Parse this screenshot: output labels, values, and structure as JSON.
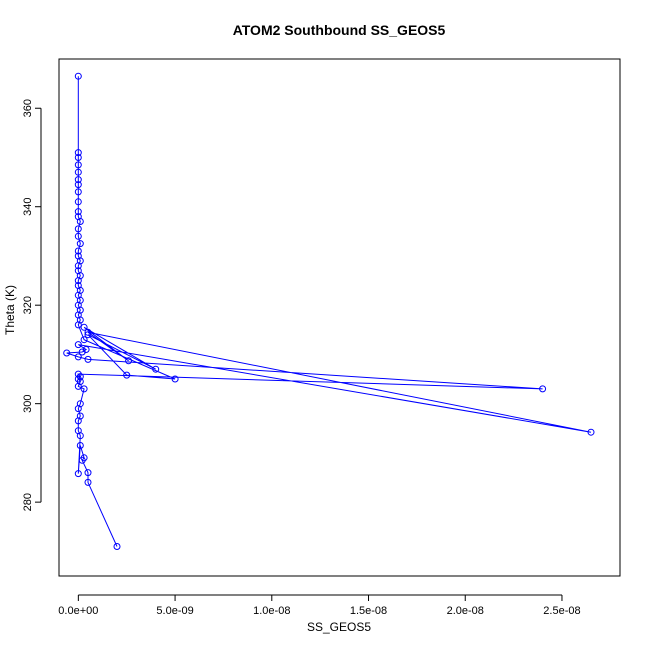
{
  "chart_data": {
    "type": "line",
    "title": "ATOM2 Southbound SS_GEOS5",
    "xlabel": "SS_GEOS5",
    "ylabel": "Theta (K)",
    "xlim": [
      -1e-09,
      2.8e-08
    ],
    "ylim": [
      265,
      370
    ],
    "x_ticks": [
      0,
      5e-09,
      1e-08,
      1.5e-08,
      2e-08,
      2.5e-08
    ],
    "x_tick_labels": [
      "0.0e+00",
      "5.0e-09",
      "1.0e-08",
      "1.5e-08",
      "2.0e-08",
      "2.5e-08"
    ],
    "y_ticks": [
      280,
      300,
      320,
      340,
      360
    ],
    "y_tick_labels": [
      "280",
      "300",
      "320",
      "340",
      "360"
    ],
    "grid": false,
    "markers": "open-circle",
    "series": [
      {
        "color": "#0000ff",
        "points": [
          [
            2e-09,
            271.0
          ],
          [
            5e-10,
            284.0
          ],
          [
            5e-10,
            286.0
          ],
          [
            2e-10,
            288.5
          ],
          [
            3e-10,
            289.0
          ],
          [
            1e-10,
            291.5
          ],
          [
            0.0,
            285.8
          ],
          [
            1e-10,
            293.5
          ],
          [
            0.0,
            294.5
          ],
          [
            0.0,
            296.5
          ],
          [
            1e-10,
            297.5
          ],
          [
            0.0,
            299.0
          ],
          [
            1e-10,
            300.0
          ],
          [
            3e-10,
            303.0
          ],
          [
            0.0,
            303.5
          ],
          [
            1e-10,
            304.5
          ],
          [
            0.0,
            305.0
          ],
          [
            1e-10,
            305.5
          ],
          [
            0.0,
            306.0
          ],
          [
            2.4e-08,
            303.0
          ],
          [
            5e-10,
            309.0
          ],
          [
            0.0,
            309.5
          ],
          [
            -6e-10,
            310.3
          ],
          [
            2e-10,
            310.5
          ],
          [
            4e-10,
            311.0
          ],
          [
            0.0,
            312.0
          ],
          [
            2.65e-08,
            294.2
          ],
          [
            5e-10,
            314.5
          ],
          [
            2.6e-09,
            308.7
          ],
          [
            3e-10,
            315.5
          ],
          [
            4e-09,
            307.0
          ],
          [
            5e-10,
            314.0
          ],
          [
            2.5e-09,
            305.8
          ],
          [
            5e-09,
            305.0
          ],
          [
            3e-10,
            313.0
          ],
          [
            0.0,
            316.0
          ],
          [
            1e-10,
            317.0
          ],
          [
            0.0,
            318.0
          ],
          [
            1e-10,
            319.0
          ],
          [
            0.0,
            320.0
          ],
          [
            1e-10,
            321.0
          ],
          [
            0.0,
            322.0
          ],
          [
            1e-10,
            323.0
          ],
          [
            0.0,
            324.0
          ],
          [
            0.0,
            325.0
          ],
          [
            1e-10,
            326.0
          ],
          [
            0.0,
            327.0
          ],
          [
            0.0,
            328.0
          ],
          [
            1e-10,
            329.0
          ],
          [
            0.0,
            330.0
          ],
          [
            0.0,
            331.0
          ],
          [
            1e-10,
            332.5
          ],
          [
            0.0,
            334.0
          ],
          [
            0.0,
            335.5
          ],
          [
            1e-10,
            337.0
          ],
          [
            0.0,
            338.0
          ],
          [
            0.0,
            339.0
          ],
          [
            0.0,
            341.0
          ],
          [
            0.0,
            343.0
          ],
          [
            0.0,
            344.5
          ],
          [
            0.0,
            345.5
          ],
          [
            0.0,
            347.0
          ],
          [
            0.0,
            348.5
          ],
          [
            0.0,
            350.0
          ],
          [
            0.0,
            351.0
          ],
          [
            0.0,
            366.5
          ]
        ]
      }
    ]
  }
}
